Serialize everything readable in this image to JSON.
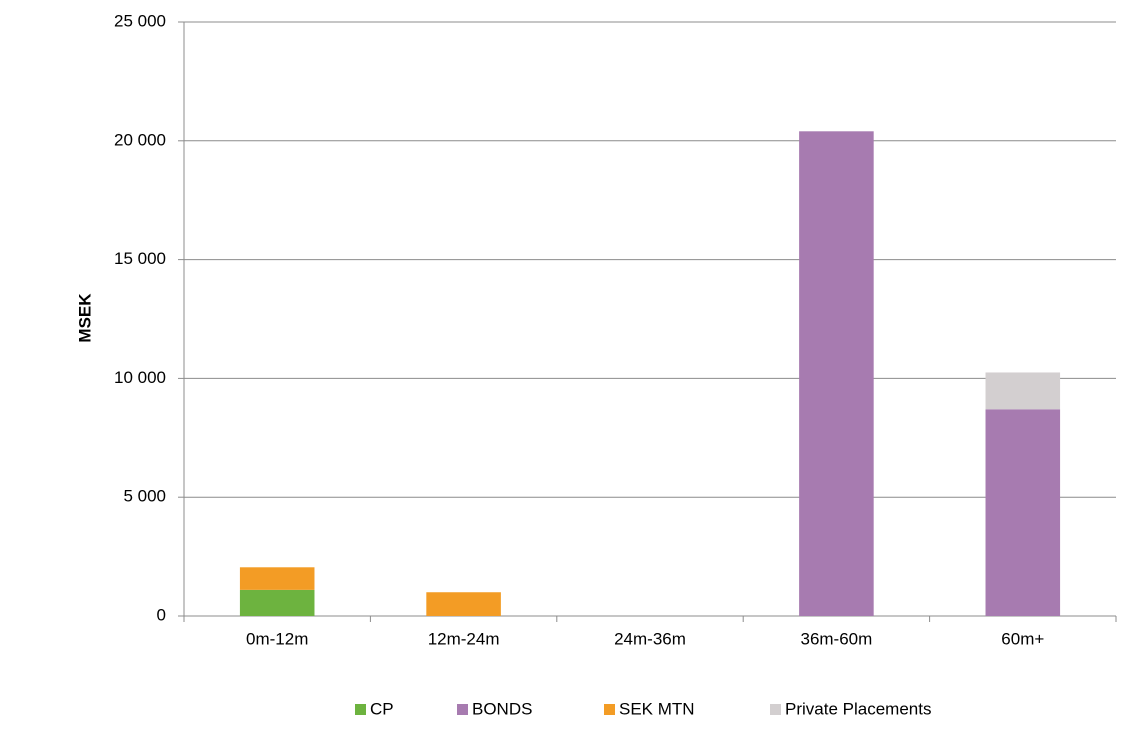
{
  "chart_data": {
    "type": "stacked-bar",
    "y_label": "MSEK",
    "categories": [
      "0m-12m",
      "12m-24m",
      "24m-36m",
      "36m-60m",
      "60m+"
    ],
    "series": [
      {
        "name": "CP",
        "color": "#6db33f",
        "values": [
          1100,
          0,
          0,
          0,
          0
        ]
      },
      {
        "name": "BONDS",
        "color": "#a77bb0",
        "values": [
          0,
          0,
          0,
          20400,
          8700
        ]
      },
      {
        "name": "SEK MTN",
        "color": "#f39c25",
        "values": [
          950,
          1000,
          0,
          0,
          0
        ]
      },
      {
        "name": "Private Placements",
        "color": "#d3cfd0",
        "values": [
          0,
          0,
          0,
          0,
          1550
        ]
      }
    ],
    "ylim": [
      0,
      25000
    ],
    "yticks": [
      0,
      {
        "value": 5000,
        "label": "5 000"
      },
      {
        "value": 10000,
        "label": "10 000"
      },
      {
        "value": 15000,
        "label": "15 000"
      },
      {
        "value": 20000,
        "label": "20 000"
      },
      {
        "value": 25000,
        "label": "25 000"
      }
    ],
    "grid": true,
    "legend": "bottom"
  }
}
